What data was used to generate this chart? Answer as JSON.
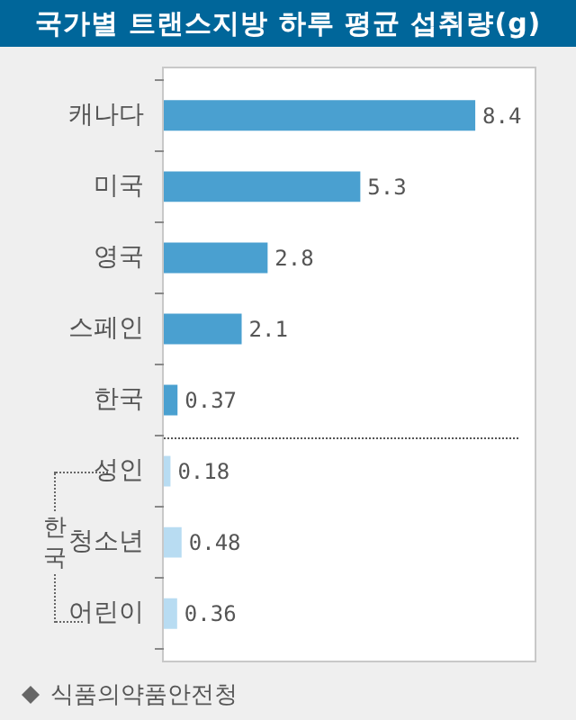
{
  "chart_data": {
    "type": "bar",
    "orientation": "horizontal",
    "title": "국가별 트랜스지방 하루 평균 섭취량(g)",
    "categories": [
      "캐나다",
      "미국",
      "영국",
      "스페인",
      "한국",
      "성인",
      "청소년",
      "어린이"
    ],
    "values": [
      8.4,
      5.3,
      2.8,
      2.1,
      0.37,
      0.18,
      0.48,
      0.36
    ],
    "colors": [
      "#4aa0d0",
      "#4aa0d0",
      "#4aa0d0",
      "#4aa0d0",
      "#4aa0d0",
      "#b8dcf2",
      "#b8dcf2",
      "#b8dcf2"
    ],
    "data_labels": true,
    "grid": false,
    "legend": false,
    "annotations": [
      "한국",
      "식품의약품안전청"
    ]
  }
}
